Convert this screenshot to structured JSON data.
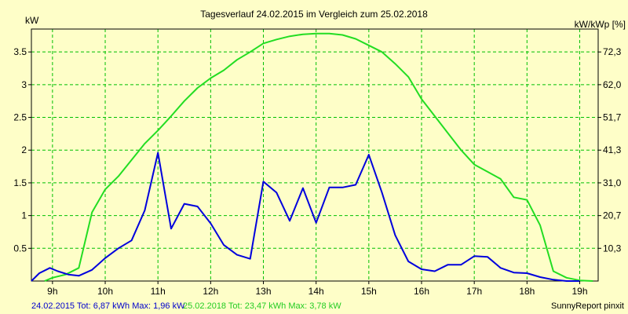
{
  "title": "Tagesverlauf 24.02.2015 im Vergleich zum 25.02.2018",
  "footer": {
    "series1_text": "24.02.2015 Tot: 6,87 kWh Max: 1,96 kW",
    "series2_text": "25.02.2018 Tot: 23,47 kWh Max: 3,78 kW",
    "brand": "SunnyReport pinxit"
  },
  "colors": {
    "background": "#fefec8",
    "grid": "#00c000",
    "series1": "#0000dd",
    "series2": "#22dd22",
    "footer_text": "#0000cc"
  },
  "chart_data": {
    "type": "line",
    "title": "Tagesverlauf 24.02.2015 im Vergleich zum 25.02.2018",
    "ylabel": "kW",
    "ylabel_right": "kW/kWp [%]",
    "xlabel": "",
    "xlim": [
      8.6,
      19.35
    ],
    "ylim": [
      0,
      3.85
    ],
    "grid": true,
    "x_ticks": [
      {
        "value": 9,
        "label": "9h"
      },
      {
        "value": 10,
        "label": "10h"
      },
      {
        "value": 11,
        "label": "11h"
      },
      {
        "value": 12,
        "label": "12h"
      },
      {
        "value": 13,
        "label": "13h"
      },
      {
        "value": 14,
        "label": "14h"
      },
      {
        "value": 15,
        "label": "15h"
      },
      {
        "value": 16,
        "label": "16h"
      },
      {
        "value": 17,
        "label": "17h"
      },
      {
        "value": 18,
        "label": "18h"
      },
      {
        "value": 19,
        "label": "19h"
      }
    ],
    "y_ticks": [
      {
        "value": 0.5,
        "label": "0.5"
      },
      {
        "value": 1,
        "label": "1"
      },
      {
        "value": 1.5,
        "label": "1.5"
      },
      {
        "value": 2,
        "label": "2"
      },
      {
        "value": 2.5,
        "label": "2.5"
      },
      {
        "value": 3,
        "label": "3"
      },
      {
        "value": 3.5,
        "label": "3.5"
      }
    ],
    "y_right_ticks": [
      {
        "value": 0.5,
        "label": "10,3"
      },
      {
        "value": 1,
        "label": "20,7"
      },
      {
        "value": 1.5,
        "label": "31,0"
      },
      {
        "value": 2,
        "label": "41,3"
      },
      {
        "value": 2.5,
        "label": "51,7"
      },
      {
        "value": 3,
        "label": "62,0"
      },
      {
        "value": 3.5,
        "label": "72,3"
      }
    ],
    "series": [
      {
        "name": "24.02.2015",
        "color": "#0000dd",
        "points": [
          [
            8.6,
            0.0
          ],
          [
            8.75,
            0.12
          ],
          [
            8.95,
            0.2
          ],
          [
            9.1,
            0.15
          ],
          [
            9.3,
            0.1
          ],
          [
            9.5,
            0.08
          ],
          [
            9.75,
            0.17
          ],
          [
            10.0,
            0.35
          ],
          [
            10.25,
            0.5
          ],
          [
            10.5,
            0.62
          ],
          [
            10.75,
            1.08
          ],
          [
            11.0,
            1.96
          ],
          [
            11.25,
            0.8
          ],
          [
            11.5,
            1.18
          ],
          [
            11.75,
            1.14
          ],
          [
            12.0,
            0.88
          ],
          [
            12.25,
            0.55
          ],
          [
            12.5,
            0.4
          ],
          [
            12.75,
            0.34
          ],
          [
            13.0,
            1.52
          ],
          [
            13.25,
            1.35
          ],
          [
            13.5,
            0.92
          ],
          [
            13.75,
            1.42
          ],
          [
            14.0,
            0.89
          ],
          [
            14.25,
            1.43
          ],
          [
            14.5,
            1.43
          ],
          [
            14.75,
            1.47
          ],
          [
            15.0,
            1.93
          ],
          [
            15.25,
            1.35
          ],
          [
            15.5,
            0.7
          ],
          [
            15.75,
            0.3
          ],
          [
            16.0,
            0.18
          ],
          [
            16.25,
            0.15
          ],
          [
            16.5,
            0.25
          ],
          [
            16.75,
            0.25
          ],
          [
            17.0,
            0.38
          ],
          [
            17.25,
            0.37
          ],
          [
            17.5,
            0.2
          ],
          [
            17.75,
            0.13
          ],
          [
            18.0,
            0.12
          ],
          [
            18.25,
            0.06
          ],
          [
            18.5,
            0.02
          ],
          [
            18.75,
            0.0
          ],
          [
            19.0,
            0.0
          ]
        ]
      },
      {
        "name": "25.02.2018",
        "color": "#22dd22",
        "points": [
          [
            8.85,
            0.0
          ],
          [
            9.0,
            0.05
          ],
          [
            9.25,
            0.1
          ],
          [
            9.5,
            0.2
          ],
          [
            9.75,
            1.05
          ],
          [
            10.0,
            1.4
          ],
          [
            10.25,
            1.6
          ],
          [
            10.5,
            1.85
          ],
          [
            10.75,
            2.1
          ],
          [
            11.0,
            2.3
          ],
          [
            11.25,
            2.52
          ],
          [
            11.5,
            2.75
          ],
          [
            11.75,
            2.95
          ],
          [
            12.0,
            3.1
          ],
          [
            12.25,
            3.22
          ],
          [
            12.5,
            3.38
          ],
          [
            12.75,
            3.5
          ],
          [
            13.0,
            3.63
          ],
          [
            13.25,
            3.69
          ],
          [
            13.5,
            3.74
          ],
          [
            13.75,
            3.77
          ],
          [
            14.0,
            3.78
          ],
          [
            14.25,
            3.78
          ],
          [
            14.5,
            3.76
          ],
          [
            14.75,
            3.7
          ],
          [
            15.0,
            3.6
          ],
          [
            15.25,
            3.5
          ],
          [
            15.5,
            3.32
          ],
          [
            15.75,
            3.12
          ],
          [
            16.0,
            2.78
          ],
          [
            16.25,
            2.52
          ],
          [
            16.5,
            2.26
          ],
          [
            16.75,
            2.0
          ],
          [
            17.0,
            1.78
          ],
          [
            17.25,
            1.67
          ],
          [
            17.5,
            1.56
          ],
          [
            17.75,
            1.28
          ],
          [
            18.0,
            1.24
          ],
          [
            18.25,
            0.85
          ],
          [
            18.5,
            0.15
          ],
          [
            18.75,
            0.05
          ],
          [
            19.0,
            0.01
          ],
          [
            19.25,
            0.0
          ]
        ]
      }
    ]
  }
}
